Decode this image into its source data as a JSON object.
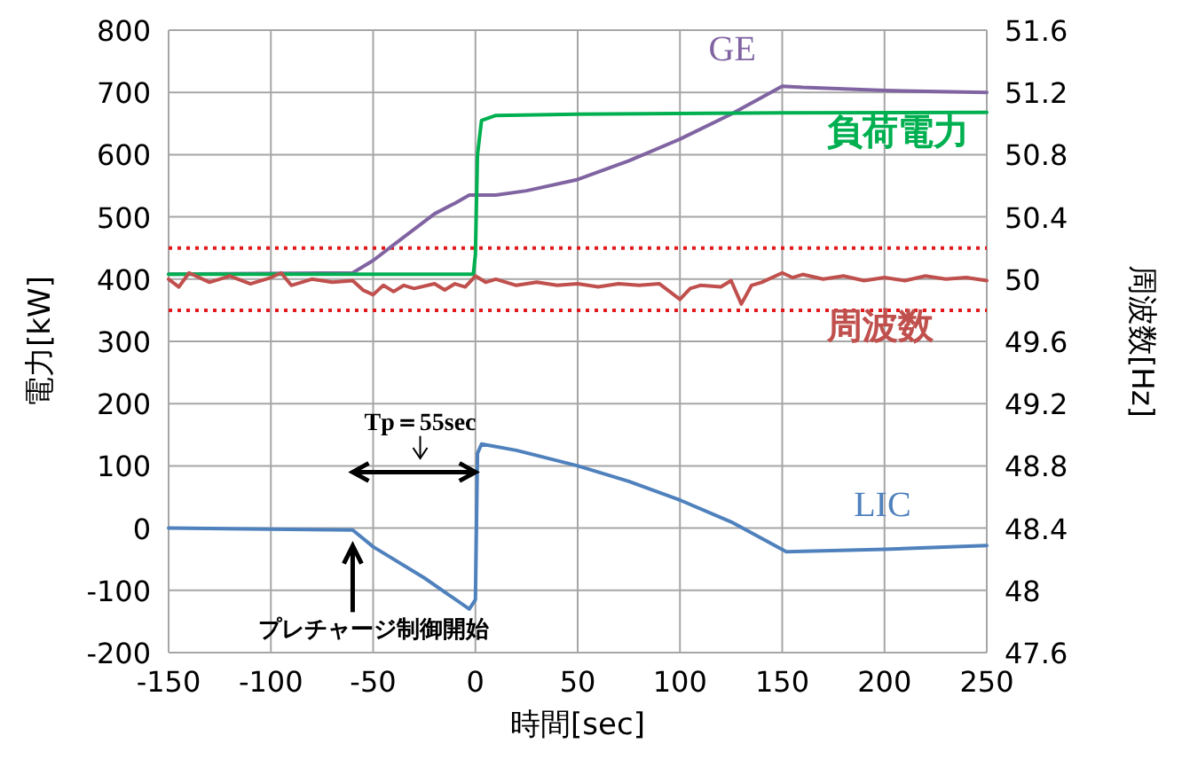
{
  "chart_data": {
    "type": "line",
    "xlabel": "時間[sec]",
    "ylabel": "電力[kW]",
    "y2label": "周波数[Hz]",
    "xlim": [
      -150,
      250
    ],
    "ylim": [
      -200,
      800
    ],
    "y2lim": [
      47.6,
      51.6
    ],
    "xticks": [
      -150,
      -100,
      -50,
      0,
      50,
      100,
      150,
      200,
      250
    ],
    "yticks": [
      -200,
      -100,
      0,
      100,
      200,
      300,
      400,
      500,
      600,
      700,
      800
    ],
    "y2ticks": [
      47.6,
      48,
      48.4,
      48.8,
      49.2,
      49.6,
      50,
      50.4,
      50.8,
      51.2,
      51.6
    ],
    "grid": true,
    "legend": false,
    "line_style": "solid",
    "marker": "none",
    "ref_lines": [
      {
        "axis": "y",
        "value": 450,
        "color": "#e31a1c",
        "line_style": "dotted"
      },
      {
        "axis": "y",
        "value": 350,
        "color": "#e31a1c",
        "line_style": "dotted"
      }
    ],
    "annotations": [
      "Tp＝55sec",
      "プレチャージ制御開始"
    ],
    "series": [
      {
        "name": "GE",
        "color": "#8064a2",
        "x": [
          -150,
          -60,
          -50,
          -40,
          -30,
          -20,
          -10,
          -3,
          0,
          10,
          25,
          50,
          75,
          100,
          125,
          150,
          160,
          200,
          250
        ],
        "values": [
          408,
          410,
          430,
          455,
          480,
          505,
          522,
          535,
          535,
          535,
          542,
          560,
          590,
          625,
          665,
          710,
          708,
          703,
          700
        ]
      },
      {
        "name": "負荷電力",
        "color": "#00b050",
        "x": [
          -150,
          -1,
          0,
          1,
          3,
          10,
          50,
          150,
          250
        ],
        "values": [
          408,
          408,
          440,
          600,
          655,
          663,
          665,
          667,
          668
        ]
      },
      {
        "name": "周波数",
        "color": "#c0504d",
        "axis": "y2",
        "x": [
          -150,
          -145,
          -140,
          -130,
          -120,
          -110,
          -100,
          -95,
          -90,
          -80,
          -70,
          -60,
          -55,
          -50,
          -45,
          -40,
          -35,
          -30,
          -20,
          -15,
          -10,
          -5,
          0,
          5,
          10,
          20,
          30,
          40,
          50,
          60,
          70,
          80,
          90,
          95,
          100,
          105,
          110,
          120,
          125,
          130,
          135,
          140,
          150,
          155,
          160,
          170,
          180,
          190,
          200,
          210,
          220,
          230,
          240,
          250
        ],
        "values": [
          50.0,
          49.95,
          50.04,
          49.98,
          50.02,
          49.97,
          50.01,
          50.04,
          49.96,
          50.0,
          49.98,
          49.99,
          49.93,
          49.9,
          49.96,
          49.92,
          49.96,
          49.94,
          49.97,
          49.93,
          49.97,
          49.95,
          50.02,
          49.98,
          50.0,
          49.96,
          49.98,
          49.96,
          49.97,
          49.95,
          49.97,
          49.96,
          49.97,
          49.92,
          49.87,
          49.94,
          49.96,
          49.95,
          49.99,
          49.84,
          49.96,
          49.98,
          50.04,
          50.01,
          50.03,
          50.0,
          50.02,
          49.99,
          50.01,
          49.99,
          50.02,
          50.0,
          50.01,
          49.99
        ]
      },
      {
        "name": "LIC",
        "color": "#4f81bd",
        "x": [
          -150,
          -60,
          -50,
          -25,
          -3,
          0,
          1,
          3,
          20,
          50,
          75,
          100,
          125,
          152,
          200,
          250
        ],
        "values": [
          0,
          -3,
          -30,
          -80,
          -130,
          -115,
          120,
          135,
          125,
          100,
          75,
          45,
          10,
          -38,
          -34,
          -28
        ]
      }
    ]
  }
}
